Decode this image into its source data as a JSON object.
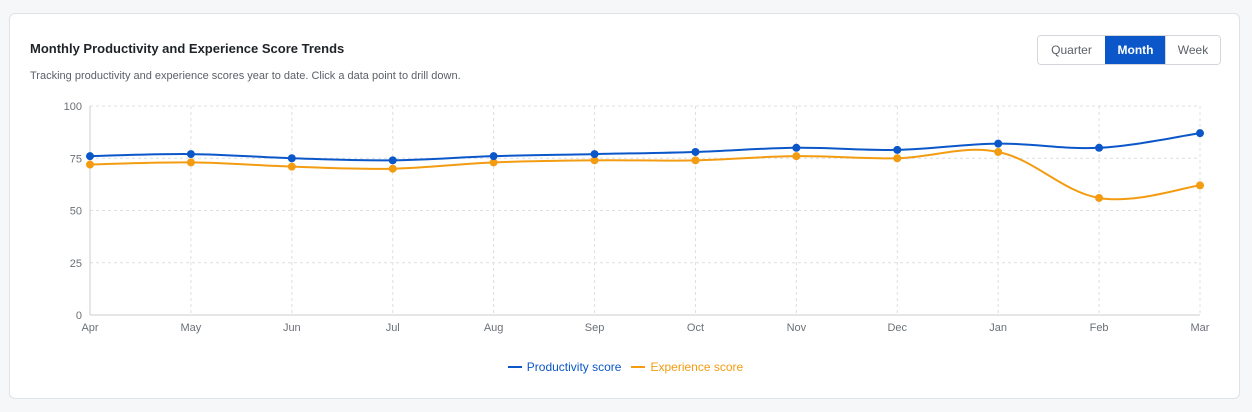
{
  "header": {
    "title": "Monthly Productivity and Experience Score Trends",
    "subtitle": "Tracking productivity and experience scores year to date. Click a data point to drill down."
  },
  "period_toggle": {
    "options": [
      "Quarter",
      "Month",
      "Week"
    ],
    "selected": "Month"
  },
  "colors": {
    "productivity": "#0b57c9",
    "experience": "#f39c12",
    "grid": "#dcdfe3",
    "axis": "#c9cdd2"
  },
  "chart_data": {
    "type": "line",
    "title": "Monthly Productivity and Experience Score Trends",
    "x": [
      "Apr",
      "May",
      "Jun",
      "Jul",
      "Aug",
      "Sep",
      "Oct",
      "Nov",
      "Dec",
      "Jan",
      "Feb",
      "Mar"
    ],
    "series": [
      {
        "name": "Productivity score",
        "values": [
          76,
          77,
          75,
          74,
          76,
          77,
          78,
          80,
          79,
          82,
          80,
          87
        ]
      },
      {
        "name": "Experience score",
        "values": [
          72,
          73,
          71,
          70,
          73,
          74,
          74,
          76,
          75,
          78,
          56,
          62
        ]
      }
    ],
    "ylim": [
      0,
      100
    ],
    "yticks": [
      0,
      25,
      50,
      75,
      100
    ],
    "grid": true,
    "legend": "bottom-center"
  }
}
